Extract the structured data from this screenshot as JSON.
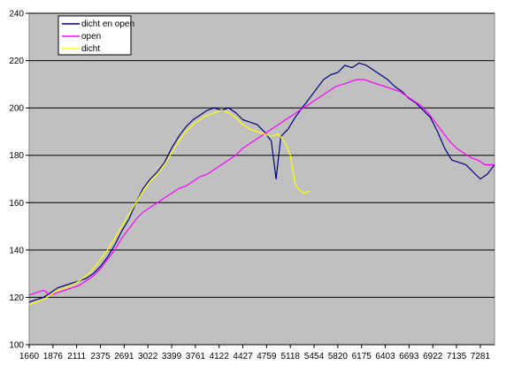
{
  "chart_data": {
    "type": "line",
    "title": "",
    "xlabel": "",
    "ylabel": "",
    "ylim": [
      100,
      240
    ],
    "yticks": [
      100,
      120,
      140,
      160,
      180,
      200,
      220,
      240
    ],
    "xtick_labels": [
      "1660",
      "1876",
      "2111",
      "2375",
      "2691",
      "3022",
      "3399",
      "3761",
      "4122",
      "4427",
      "4759",
      "5118",
      "5454",
      "5820",
      "6175",
      "6403",
      "6693",
      "6922",
      "7135",
      "7281"
    ],
    "x_range": [
      0,
      19.6
    ],
    "grid": "horizontal",
    "legend_position": "top-left",
    "plot_background": "#c0c0c0",
    "series": [
      {
        "name": "dicht en open",
        "color": "#000080",
        "points": [
          [
            0,
            118
          ],
          [
            0.3,
            119
          ],
          [
            0.6,
            120
          ],
          [
            0.9,
            122
          ],
          [
            1.2,
            124
          ],
          [
            1.5,
            125
          ],
          [
            1.8,
            126
          ],
          [
            2.1,
            127
          ],
          [
            2.4,
            128
          ],
          [
            2.7,
            130
          ],
          [
            3.0,
            133
          ],
          [
            3.3,
            137
          ],
          [
            3.6,
            142
          ],
          [
            3.9,
            148
          ],
          [
            4.2,
            153
          ],
          [
            4.5,
            160
          ],
          [
            4.8,
            166
          ],
          [
            5.1,
            170
          ],
          [
            5.4,
            173
          ],
          [
            5.7,
            177
          ],
          [
            6.0,
            183
          ],
          [
            6.3,
            188
          ],
          [
            6.6,
            192
          ],
          [
            6.9,
            195
          ],
          [
            7.2,
            197
          ],
          [
            7.5,
            199
          ],
          [
            7.8,
            200
          ],
          [
            8.1,
            199
          ],
          [
            8.4,
            200
          ],
          [
            8.7,
            198
          ],
          [
            9.0,
            195
          ],
          [
            9.3,
            194
          ],
          [
            9.6,
            193
          ],
          [
            9.9,
            190
          ],
          [
            10.2,
            186
          ],
          [
            10.4,
            170
          ],
          [
            10.6,
            188
          ],
          [
            10.9,
            191
          ],
          [
            11.2,
            196
          ],
          [
            11.5,
            200
          ],
          [
            11.8,
            204
          ],
          [
            12.1,
            208
          ],
          [
            12.4,
            212
          ],
          [
            12.7,
            214
          ],
          [
            13.0,
            215
          ],
          [
            13.3,
            218
          ],
          [
            13.6,
            217
          ],
          [
            13.9,
            219
          ],
          [
            14.2,
            218
          ],
          [
            14.5,
            216
          ],
          [
            14.8,
            214
          ],
          [
            15.1,
            212
          ],
          [
            15.4,
            209
          ],
          [
            15.7,
            207
          ],
          [
            16.0,
            204
          ],
          [
            16.3,
            202
          ],
          [
            16.6,
            199
          ],
          [
            16.9,
            196
          ],
          [
            17.2,
            190
          ],
          [
            17.5,
            183
          ],
          [
            17.8,
            178
          ],
          [
            18.1,
            177
          ],
          [
            18.4,
            176
          ],
          [
            18.7,
            173
          ],
          [
            19.0,
            170
          ],
          [
            19.3,
            172
          ],
          [
            19.6,
            176
          ]
        ]
      },
      {
        "name": "open",
        "color": "#ff00ff",
        "points": [
          [
            0,
            121
          ],
          [
            0.3,
            122
          ],
          [
            0.6,
            123
          ],
          [
            0.9,
            121
          ],
          [
            1.2,
            122
          ],
          [
            1.5,
            123
          ],
          [
            1.8,
            124
          ],
          [
            2.1,
            125
          ],
          [
            2.4,
            127
          ],
          [
            2.7,
            129
          ],
          [
            3.0,
            132
          ],
          [
            3.3,
            136
          ],
          [
            3.6,
            140
          ],
          [
            3.9,
            145
          ],
          [
            4.2,
            149
          ],
          [
            4.5,
            153
          ],
          [
            4.8,
            156
          ],
          [
            5.1,
            158
          ],
          [
            5.4,
            160
          ],
          [
            5.7,
            162
          ],
          [
            6.0,
            164
          ],
          [
            6.3,
            166
          ],
          [
            6.6,
            167
          ],
          [
            6.9,
            169
          ],
          [
            7.2,
            171
          ],
          [
            7.5,
            172
          ],
          [
            7.8,
            174
          ],
          [
            8.1,
            176
          ],
          [
            8.4,
            178
          ],
          [
            8.7,
            180
          ],
          [
            9.0,
            183
          ],
          [
            9.3,
            185
          ],
          [
            9.6,
            187
          ],
          [
            9.9,
            189
          ],
          [
            10.2,
            191
          ],
          [
            10.5,
            193
          ],
          [
            10.8,
            195
          ],
          [
            11.1,
            197
          ],
          [
            11.4,
            199
          ],
          [
            11.7,
            201
          ],
          [
            12.0,
            203
          ],
          [
            12.3,
            205
          ],
          [
            12.6,
            207
          ],
          [
            12.9,
            209
          ],
          [
            13.2,
            210
          ],
          [
            13.5,
            211
          ],
          [
            13.8,
            212
          ],
          [
            14.1,
            212
          ],
          [
            14.4,
            211
          ],
          [
            14.7,
            210
          ],
          [
            15.0,
            209
          ],
          [
            15.3,
            208
          ],
          [
            15.6,
            207
          ],
          [
            15.9,
            205
          ],
          [
            16.2,
            203
          ],
          [
            16.5,
            201
          ],
          [
            16.8,
            198
          ],
          [
            17.1,
            194
          ],
          [
            17.4,
            190
          ],
          [
            17.7,
            186
          ],
          [
            18.0,
            183
          ],
          [
            18.3,
            181
          ],
          [
            18.6,
            179
          ],
          [
            18.9,
            178
          ],
          [
            19.2,
            176
          ],
          [
            19.6,
            176
          ]
        ]
      },
      {
        "name": "dicht",
        "color": "#ffff00",
        "points": [
          [
            0,
            117
          ],
          [
            0.3,
            118
          ],
          [
            0.6,
            119
          ],
          [
            0.9,
            121
          ],
          [
            1.2,
            123
          ],
          [
            1.5,
            124
          ],
          [
            1.8,
            125
          ],
          [
            2.1,
            127
          ],
          [
            2.4,
            129
          ],
          [
            2.7,
            132
          ],
          [
            3.0,
            136
          ],
          [
            3.3,
            140
          ],
          [
            3.6,
            145
          ],
          [
            3.9,
            150
          ],
          [
            4.2,
            155
          ],
          [
            4.5,
            160
          ],
          [
            4.8,
            165
          ],
          [
            5.1,
            169
          ],
          [
            5.4,
            172
          ],
          [
            5.7,
            176
          ],
          [
            6.0,
            181
          ],
          [
            6.3,
            186
          ],
          [
            6.6,
            190
          ],
          [
            6.9,
            193
          ],
          [
            7.2,
            195
          ],
          [
            7.5,
            197
          ],
          [
            7.8,
            198
          ],
          [
            8.1,
            199
          ],
          [
            8.4,
            198
          ],
          [
            8.7,
            196
          ],
          [
            9.0,
            193
          ],
          [
            9.3,
            191
          ],
          [
            9.6,
            190
          ],
          [
            9.9,
            189
          ],
          [
            10.2,
            188
          ],
          [
            10.5,
            189
          ],
          [
            10.8,
            185
          ],
          [
            11.0,
            180
          ],
          [
            11.2,
            168
          ],
          [
            11.4,
            165
          ],
          [
            11.6,
            164
          ],
          [
            11.8,
            165
          ]
        ]
      }
    ]
  }
}
